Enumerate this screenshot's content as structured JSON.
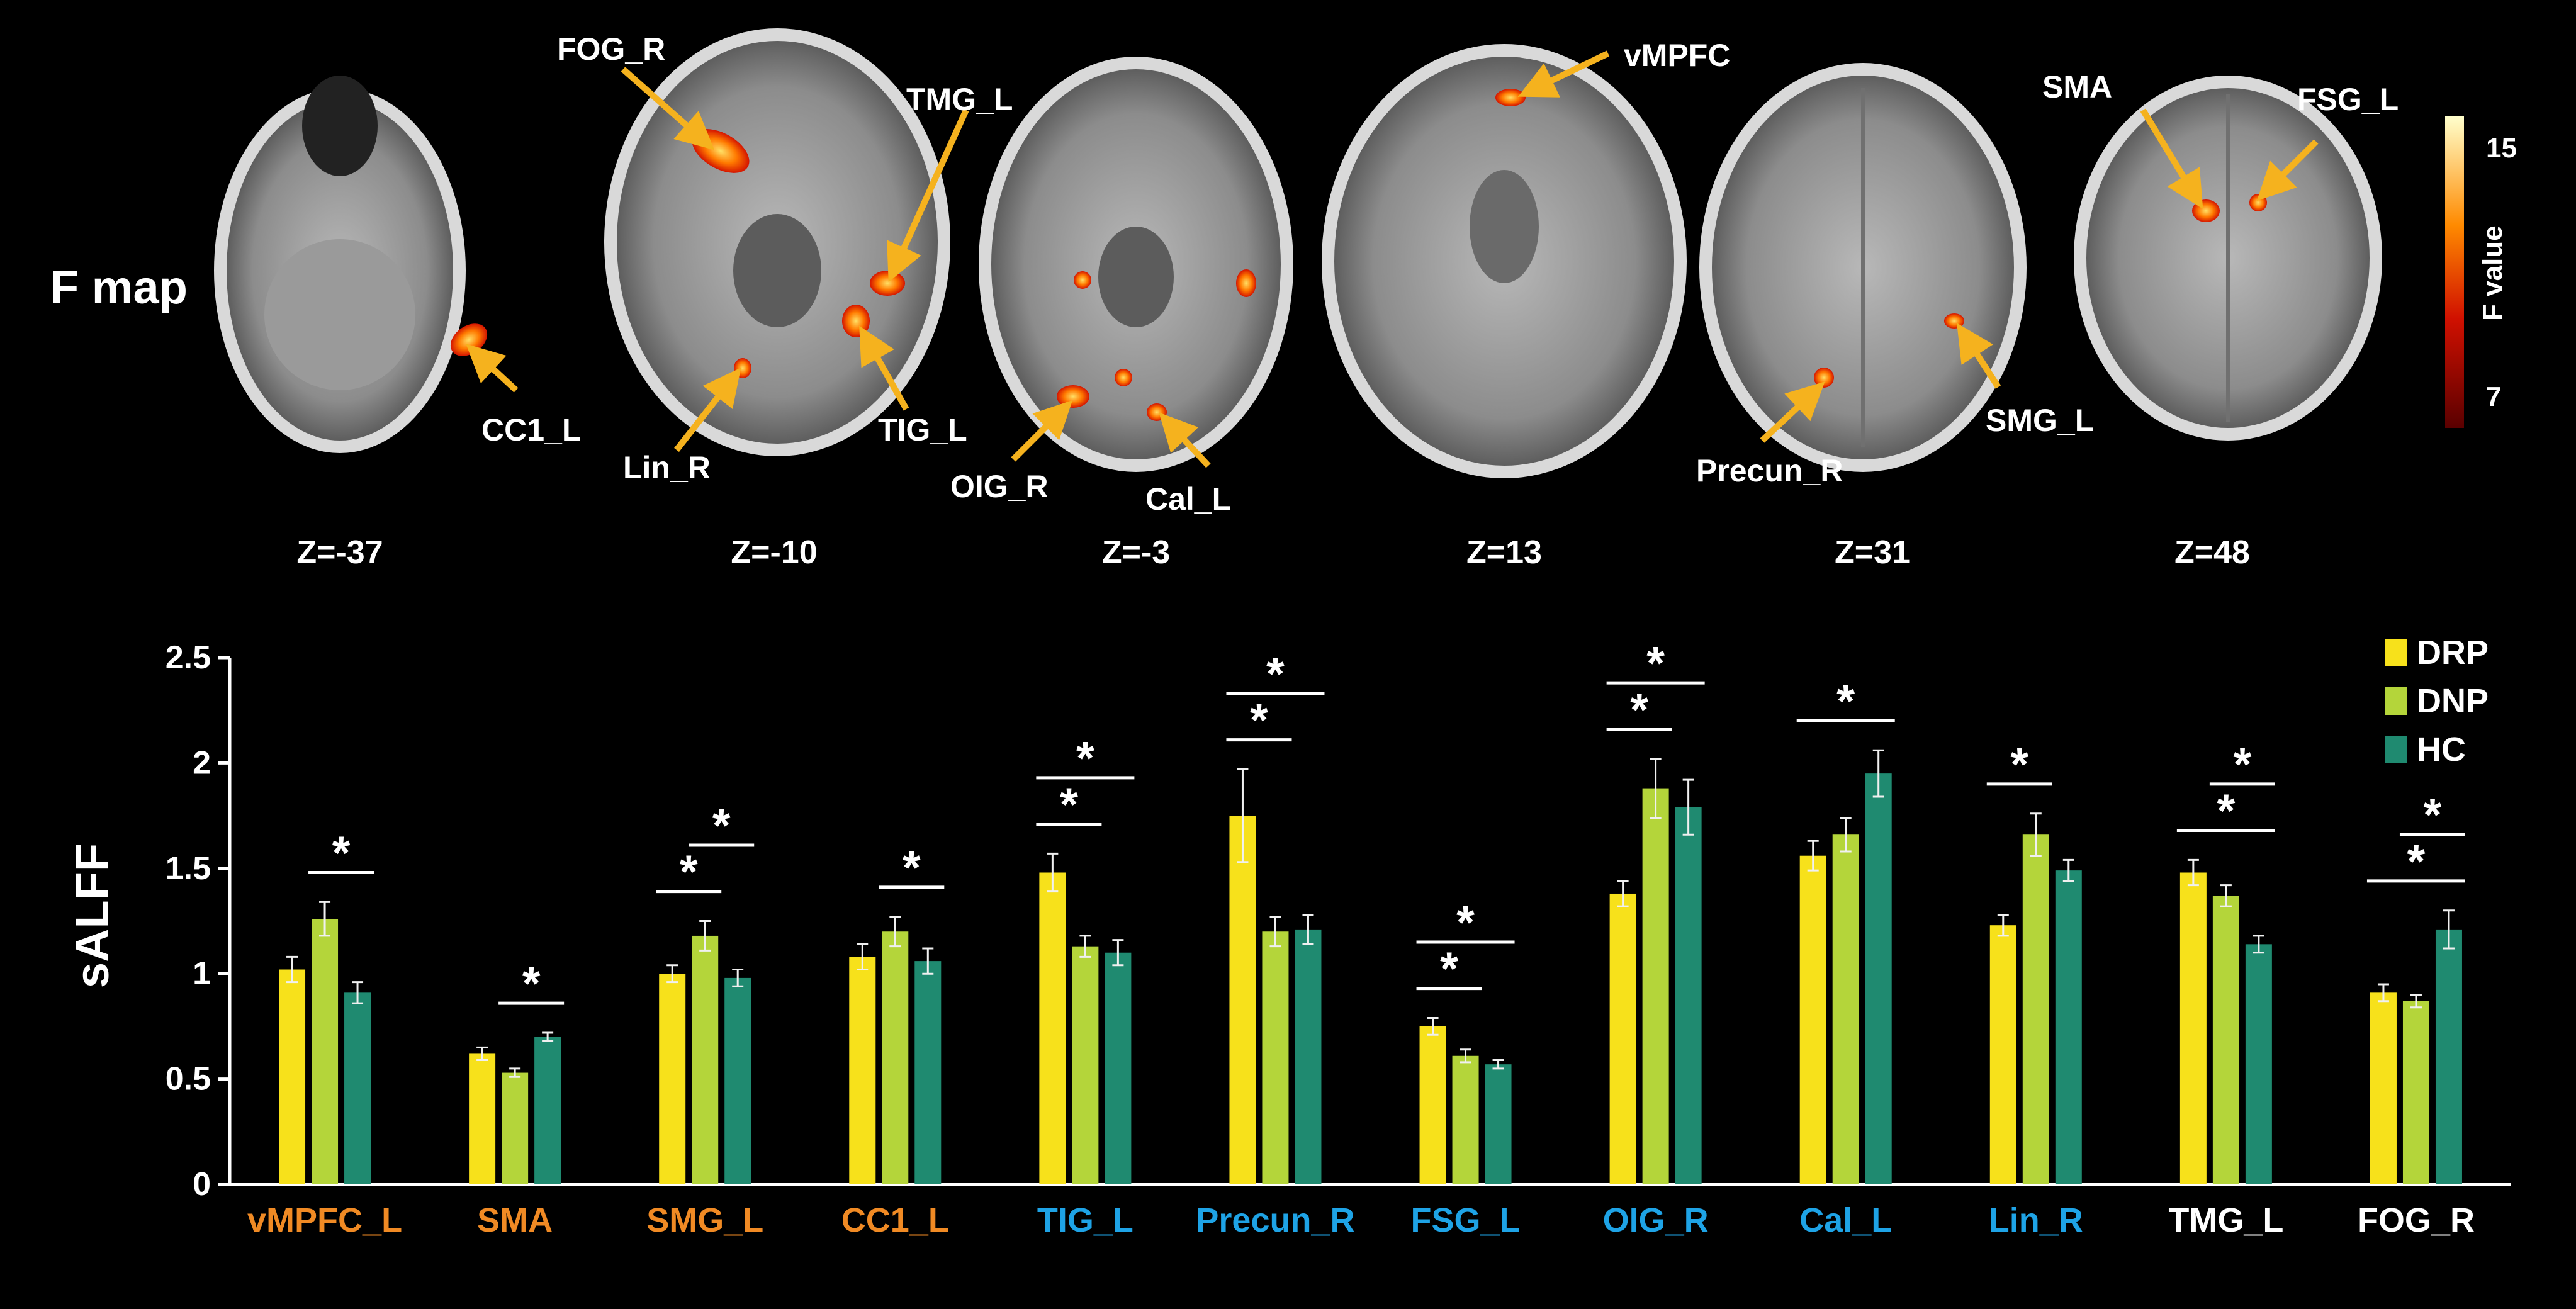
{
  "brain_panel": {
    "title": "F map",
    "slices": [
      {
        "z": "Z=-37",
        "labels": [
          "CC1_L"
        ]
      },
      {
        "z": "Z=-10",
        "labels": [
          "FOG_R",
          "TMG_L",
          "Lin_R",
          "TIG_L"
        ]
      },
      {
        "z": "Z=-3",
        "labels": [
          "OIG_R",
          "Cal_L"
        ]
      },
      {
        "z": "Z=13",
        "labels": [
          "vMPFC"
        ]
      },
      {
        "z": "Z=31",
        "labels": [
          "Precun_R",
          "SMG_L"
        ]
      },
      {
        "z": "Z=48",
        "labels": [
          "SMA",
          "FSG_L"
        ]
      }
    ],
    "colorbar": {
      "label": "F value",
      "max": "15",
      "min": "7"
    }
  },
  "colors": {
    "DRP": "#f7e11b",
    "DNP": "#b4d53a",
    "HC": "#1f8a70",
    "cat_orange": "#f08a24",
    "cat_blue": "#1ea3e6",
    "cat_white": "#ffffff",
    "arrow": "#f5b21e"
  },
  "chart_data": {
    "type": "bar",
    "ylabel": "sALFF",
    "ylim": [
      0,
      2.5
    ],
    "yticks": [
      "0",
      "0.5",
      "1",
      "1.5",
      "2",
      "2.5"
    ],
    "categories": [
      "vMPFC_L",
      "SMA",
      "SMG_L",
      "CC1_L",
      "TIG_L",
      "Precun_R",
      "FSG_L",
      "OIG_R",
      "Cal_L",
      "Lin_R",
      "TMG_L",
      "FOG_R"
    ],
    "category_colors": [
      "orange",
      "orange",
      "orange",
      "orange",
      "blue",
      "blue",
      "blue",
      "blue",
      "blue",
      "blue",
      "white",
      "white"
    ],
    "series": [
      {
        "name": "DRP",
        "values": [
          1.02,
          0.62,
          1.0,
          1.08,
          1.48,
          1.75,
          0.75,
          1.38,
          1.56,
          1.23,
          1.48,
          0.91
        ],
        "errors": [
          0.06,
          0.03,
          0.04,
          0.06,
          0.09,
          0.22,
          0.04,
          0.06,
          0.07,
          0.05,
          0.06,
          0.04
        ]
      },
      {
        "name": "DNP",
        "values": [
          1.26,
          0.53,
          1.18,
          1.2,
          1.13,
          1.2,
          0.61,
          1.88,
          1.66,
          1.66,
          1.37,
          0.87
        ],
        "errors": [
          0.08,
          0.02,
          0.07,
          0.07,
          0.05,
          0.07,
          0.03,
          0.14,
          0.08,
          0.1,
          0.05,
          0.03
        ]
      },
      {
        "name": "HC",
        "values": [
          0.91,
          0.7,
          0.98,
          1.06,
          1.1,
          1.21,
          0.57,
          1.79,
          1.95,
          1.49,
          1.14,
          1.21
        ],
        "errors": [
          0.05,
          0.02,
          0.04,
          0.06,
          0.06,
          0.07,
          0.02,
          0.13,
          0.11,
          0.05,
          0.04,
          0.09
        ]
      }
    ],
    "significance": [
      {
        "cat": 0,
        "pairs": [
          [
            1,
            2
          ]
        ]
      },
      {
        "cat": 1,
        "pairs": [
          [
            1,
            2
          ]
        ]
      },
      {
        "cat": 2,
        "pairs": [
          [
            0,
            1
          ],
          [
            1,
            2
          ]
        ]
      },
      {
        "cat": 3,
        "pairs": [
          [
            1,
            2
          ]
        ]
      },
      {
        "cat": 4,
        "pairs": [
          [
            0,
            1
          ],
          [
            0,
            2
          ]
        ]
      },
      {
        "cat": 5,
        "pairs": [
          [
            0,
            1
          ],
          [
            0,
            2
          ]
        ]
      },
      {
        "cat": 6,
        "pairs": [
          [
            0,
            1
          ],
          [
            0,
            2
          ]
        ]
      },
      {
        "cat": 7,
        "pairs": [
          [
            0,
            1
          ],
          [
            0,
            2
          ]
        ]
      },
      {
        "cat": 8,
        "pairs": [
          [
            0,
            2
          ]
        ]
      },
      {
        "cat": 9,
        "pairs": [
          [
            0,
            1
          ]
        ]
      },
      {
        "cat": 10,
        "pairs": [
          [
            0,
            2
          ],
          [
            1,
            2
          ]
        ]
      },
      {
        "cat": 11,
        "pairs": [
          [
            0,
            2
          ],
          [
            1,
            2
          ]
        ]
      }
    ],
    "significance_mark": "*",
    "legend_position": "top-right"
  }
}
